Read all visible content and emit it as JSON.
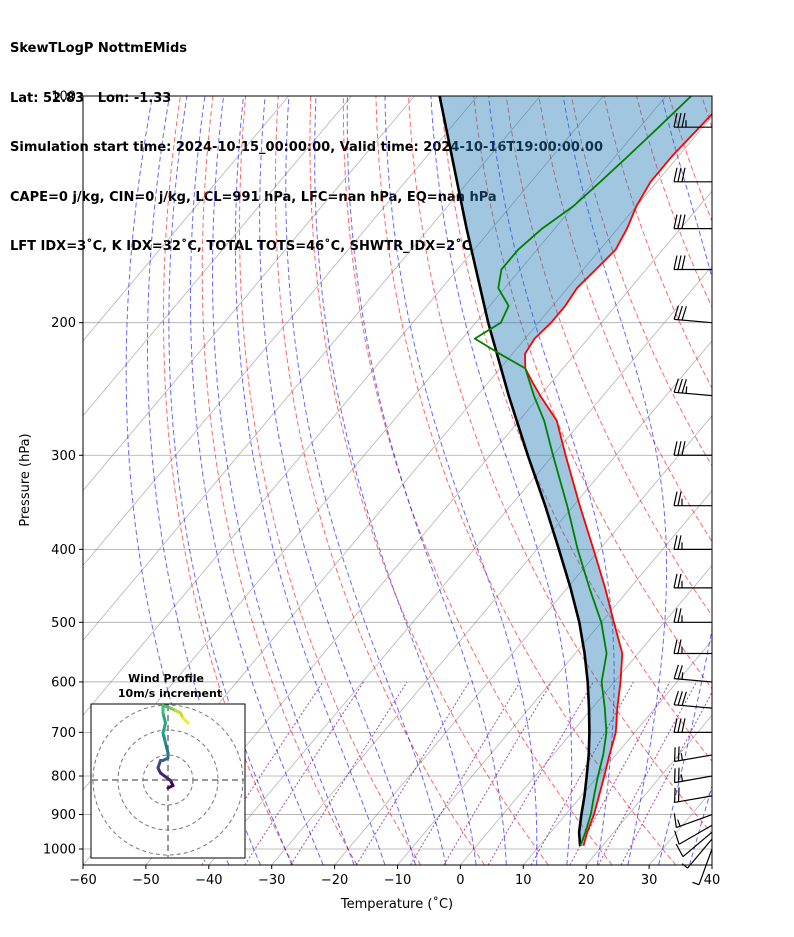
{
  "header": {
    "line1": "SkewTLogP NottmEMids",
    "line2": "Lat: 52.83   Lon: -1.33",
    "line3": "Simulation start time: 2024-10-15_00:00:00, Valid time: 2024-10-16T19:00:00.00",
    "line4": "CAPE=0 j/kg, CIN=0 j/kg, LCL=991 hPa, LFC=nan hPa, EQ=nan hPa",
    "line5": "LFT IDX=3˚C, K IDX=32˚C, TOTAL TOTS=46˚C, SHWTR_IDX=2˚C"
  },
  "chart_data": {
    "type": "line",
    "subtype": "skew-t log-p",
    "xlabel": "Temperature (˚C)",
    "ylabel": "Pressure (hPa)",
    "xlim": [
      -60,
      40
    ],
    "ylim": [
      1050,
      100
    ],
    "y_scale": "log",
    "grid": true,
    "x_ticks": [
      -60,
      -50,
      -40,
      -30,
      -20,
      -10,
      0,
      10,
      20,
      30,
      40
    ],
    "x_tick_labels": [
      "−60",
      "−50",
      "−40",
      "−30",
      "−20",
      "−10",
      "0",
      "10",
      "20",
      "30",
      "40"
    ],
    "y_ticks": [
      1000,
      900,
      800,
      700,
      600,
      500,
      400,
      300,
      200,
      100
    ],
    "y_tick_labels": [
      "1000",
      "900",
      "800",
      "700",
      "600",
      "500",
      "400",
      "300",
      "200",
      "100"
    ],
    "colors": {
      "temperature": "#ff0000",
      "dewpoint": "#008000",
      "parcel": "#000000",
      "cin_fill": "#1f77b4",
      "dry_adiabat": "#ff0000",
      "moist_adiabat": "#0000ff",
      "mixing_ratio": "#800080",
      "isotherm": "#808080"
    },
    "series": [
      {
        "key": "temperature",
        "pressure": [
          990,
          950,
          900,
          850,
          800,
          750,
          700,
          650,
          600,
          550,
          500,
          450,
          400,
          350,
          300,
          270,
          250,
          240,
          230,
          220,
          210,
          200,
          190,
          180,
          170,
          160,
          150,
          140,
          130,
          120,
          110,
          100
        ],
        "values": [
          17,
          15.8,
          14.5,
          12.8,
          11,
          9,
          7,
          4,
          1,
          -2.5,
          -8,
          -14,
          -21,
          -29,
          -38,
          -44,
          -50,
          -53,
          -56,
          -58,
          -58.5,
          -58,
          -58,
          -58.5,
          -58,
          -57.5,
          -58.5,
          -60,
          -61,
          -61,
          -60.5,
          -60
        ]
      },
      {
        "key": "dewpoint",
        "pressure": [
          990,
          950,
          900,
          850,
          800,
          750,
          700,
          650,
          600,
          550,
          500,
          450,
          400,
          350,
          300,
          270,
          250,
          230,
          220,
          210,
          200,
          190,
          180,
          170,
          160,
          150,
          140,
          130,
          120,
          110,
          100
        ],
        "values": [
          16.5,
          15.5,
          14,
          12,
          10,
          8,
          5.5,
          2,
          -2,
          -5,
          -10,
          -16.5,
          -23.5,
          -31,
          -40,
          -46,
          -51,
          -56,
          -62,
          -68,
          -66,
          -67,
          -71,
          -73,
          -73,
          -72,
          -70,
          -69,
          -68,
          -67,
          -66
        ]
      },
      {
        "key": "parcel",
        "pressure": [
          991,
          950,
          900,
          850,
          800,
          750,
          700,
          650,
          600,
          550,
          500,
          450,
          400,
          350,
          300,
          250,
          200,
          150,
          100
        ],
        "values": [
          16.5,
          14.5,
          12.5,
          10.5,
          8.2,
          5.7,
          2.8,
          -0.5,
          -4.2,
          -8.5,
          -13.5,
          -19.5,
          -26.5,
          -34.5,
          -44,
          -55,
          -68,
          -84,
          -106
        ]
      }
    ],
    "wind_barbs": {
      "pressure": [
        1000,
        970,
        950,
        930,
        900,
        850,
        800,
        750,
        700,
        650,
        600,
        550,
        500,
        450,
        400,
        350,
        300,
        250,
        200,
        170,
        150,
        130,
        110
      ],
      "speed_kt": [
        5,
        8,
        10,
        12,
        15,
        20,
        25,
        25,
        30,
        30,
        25,
        25,
        25,
        25,
        25,
        25,
        30,
        35,
        30,
        30,
        30,
        30,
        35
      ],
      "direction_deg": [
        200,
        220,
        230,
        240,
        250,
        260,
        260,
        260,
        270,
        275,
        275,
        270,
        270,
        270,
        270,
        270,
        270,
        275,
        275,
        270,
        270,
        270,
        270
      ]
    },
    "hodograph": {
      "title": "Wind Profile",
      "subtitle": "10m/s increment",
      "u": [
        0,
        2,
        1,
        -3,
        -4,
        -3,
        -2,
        0,
        0,
        -1,
        -2,
        -1,
        -2,
        -2,
        1,
        3,
        5,
        6,
        8
      ],
      "v": [
        0,
        1,
        3,
        6,
        8,
        11,
        11,
        12,
        14,
        18,
        22,
        26,
        30,
        33,
        32,
        31,
        30,
        28,
        26
      ]
    }
  }
}
